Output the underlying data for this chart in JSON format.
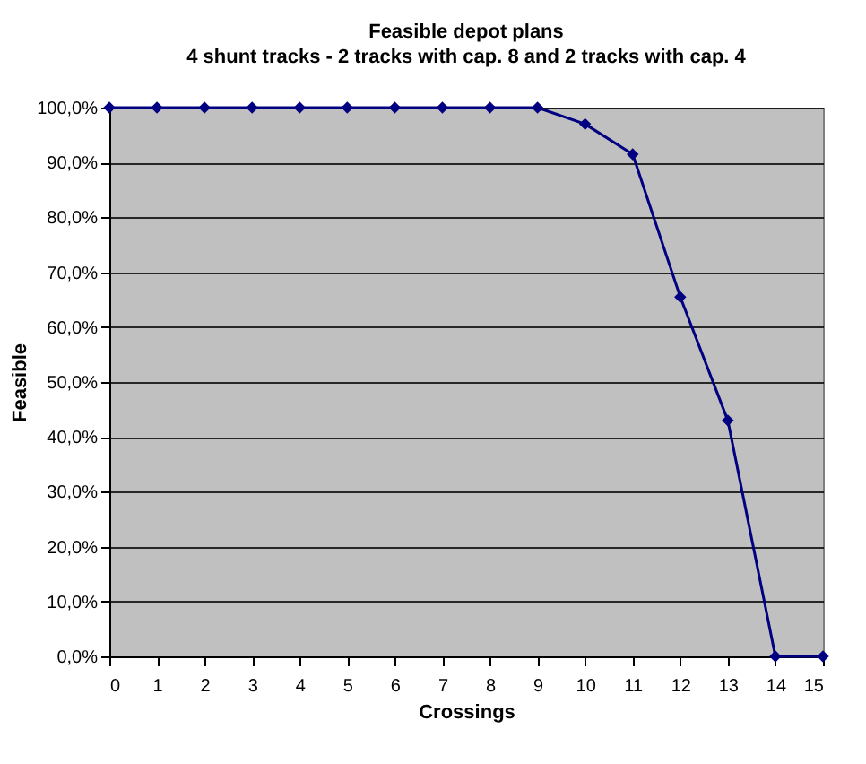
{
  "chart_data": {
    "type": "line",
    "title": "Feasible depot plans",
    "subtitle": "4 shunt tracks - 2 tracks with cap. 8 and 2 tracks with cap. 4",
    "xlabel": "Crossings",
    "ylabel": "Feasible",
    "x": [
      0,
      1,
      2,
      3,
      4,
      5,
      6,
      7,
      8,
      9,
      10,
      11,
      12,
      13,
      14,
      15
    ],
    "series": [
      {
        "color": "#000080",
        "values": [
          100,
          100,
          100,
          100,
          100,
          100,
          100,
          100,
          100,
          100,
          97,
          91.5,
          65.5,
          43,
          0,
          0
        ]
      }
    ],
    "xlim": [
      0,
      15
    ],
    "xticks": [
      0,
      1,
      2,
      3,
      4,
      5,
      6,
      7,
      8,
      9,
      10,
      11,
      12,
      13,
      14,
      15
    ],
    "ylim": [
      0,
      100
    ],
    "yticks": [
      {
        "value": 0,
        "label": "0,0%"
      },
      {
        "value": 10,
        "label": "10,0%"
      },
      {
        "value": 20,
        "label": "20,0%"
      },
      {
        "value": 30,
        "label": "30,0%"
      },
      {
        "value": 40,
        "label": "40,0%"
      },
      {
        "value": 50,
        "label": "50,0%"
      },
      {
        "value": 60,
        "label": "60,0%"
      },
      {
        "value": 70,
        "label": "70,0%"
      },
      {
        "value": 80,
        "label": "80,0%"
      },
      {
        "value": 90,
        "label": "90,0%"
      },
      {
        "value": 100,
        "label": "100,0%"
      }
    ],
    "grid": "y",
    "legend": false,
    "marker": "diamond",
    "line_style": "solid"
  }
}
